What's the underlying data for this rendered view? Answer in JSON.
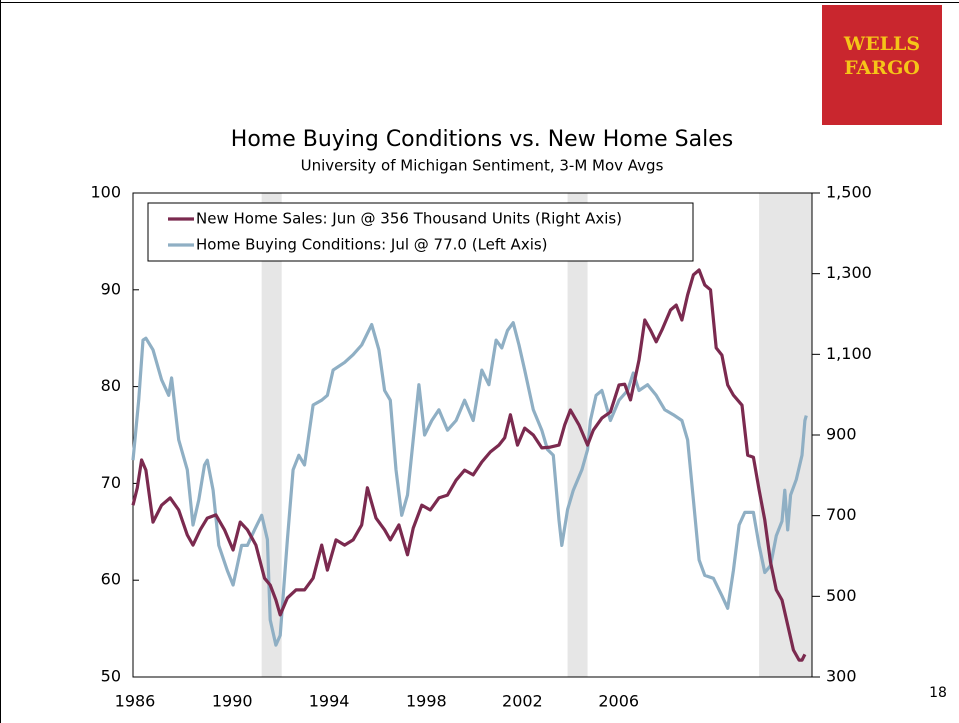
{
  "logo": "WELLS FARGO",
  "page_number": "18",
  "chart_data": {
    "type": "line",
    "title": "Home Buying Conditions vs. New Home Sales",
    "subtitle": "University of Michigan Sentiment, 3-M Mov Avgs",
    "xlim": [
      1986,
      2009.75
    ],
    "xticks": [
      {
        "value": 1986.07,
        "label": "1986"
      },
      {
        "value": 1989.47,
        "label": "1990"
      },
      {
        "value": 1992.86,
        "label": "1994"
      },
      {
        "value": 1996.26,
        "label": "1998"
      },
      {
        "value": 1999.62,
        "label": "2002"
      },
      {
        "value": 2002.99,
        "label": "2006"
      }
    ],
    "ylim": [
      50,
      100
    ],
    "yticks": [
      50,
      60,
      70,
      80,
      90,
      100
    ],
    "y2lim": [
      300,
      1500
    ],
    "y2ticks": [
      300,
      500,
      700,
      900,
      {
        "value": 1100,
        "label": "1,100"
      },
      {
        "value": 1300,
        "label": "1,300"
      },
      {
        "value": 1500,
        "label": "1,500"
      }
    ],
    "recessions": [
      [
        1990.5,
        1991.2
      ],
      [
        2001.2,
        2001.9
      ],
      [
        2007.9,
        2009.75
      ]
    ],
    "recession_color": "#e6e6e6",
    "legend": "upper left",
    "series": [
      {
        "name": "New Home Sales: Jun @ 356 Thousand Units (Right Axis)",
        "color": "#7b2a4f",
        "axis": "y2",
        "x": [
          1986.0,
          1986.15,
          1986.3,
          1986.45,
          1986.7,
          1987.0,
          1987.3,
          1987.6,
          1987.9,
          1988.1,
          1988.35,
          1988.6,
          1988.9,
          1989.2,
          1989.5,
          1989.75,
          1990.0,
          1990.3,
          1990.6,
          1990.8,
          1991.0,
          1991.15,
          1991.4,
          1991.7,
          1992.0,
          1992.3,
          1992.6,
          1992.8,
          1993.1,
          1993.4,
          1993.7,
          1994.0,
          1994.2,
          1994.5,
          1994.8,
          1995.0,
          1995.3,
          1995.6,
          1995.8,
          1996.1,
          1996.4,
          1996.7,
          1997.0,
          1997.3,
          1997.6,
          1997.9,
          1998.2,
          1998.5,
          1998.8,
          1999.0,
          1999.2,
          1999.45,
          1999.7,
          2000.0,
          2000.3,
          2000.6,
          2000.9,
          2001.1,
          2001.3,
          2001.6,
          2001.9,
          2002.1,
          2002.4,
          2002.7,
          2003.0,
          2003.2,
          2003.4,
          2003.7,
          2003.9,
          2004.1,
          2004.3,
          2004.5,
          2004.8,
          2005.0,
          2005.2,
          2005.4,
          2005.6,
          2005.8,
          2006.0,
          2006.2,
          2006.4,
          2006.6,
          2006.8,
          2007.0,
          2007.3,
          2007.5,
          2007.7,
          2007.9,
          2008.1,
          2008.3,
          2008.5,
          2008.7,
          2008.9,
          2009.1,
          2009.3,
          2009.4,
          2009.5
        ],
        "values": [
          726,
          769,
          838,
          813,
          684,
          726,
          744,
          714,
          652,
          627,
          665,
          694,
          702,
          665,
          615,
          684,
          665,
          627,
          545,
          528,
          491,
          454,
          496,
          516,
          516,
          545,
          627,
          565,
          640,
          627,
          640,
          677,
          769,
          694,
          665,
          640,
          677,
          603,
          669,
          726,
          714,
          744,
          751,
          788,
          813,
          801,
          833,
          858,
          875,
          893,
          950,
          875,
          917,
          900,
          868,
          870,
          875,
          925,
          962,
          925,
          875,
          912,
          942,
          957,
          1024,
          1026,
          987,
          1086,
          1185,
          1160,
          1131,
          1160,
          1210,
          1222,
          1185,
          1247,
          1297,
          1309,
          1272,
          1260,
          1116,
          1098,
          1024,
          999,
          974,
          850,
          845,
          764,
          689,
          585,
          516,
          491,
          429,
          367,
          342,
          342,
          356
        ]
      },
      {
        "name": "Home Buying Conditions: Jul @ 77.0 (Left Axis)",
        "color": "#8fafc4",
        "x": [
          1986.0,
          1986.2,
          1986.35,
          1986.45,
          1986.7,
          1987.0,
          1987.25,
          1987.35,
          1987.6,
          1987.9,
          1988.1,
          1988.3,
          1988.5,
          1988.6,
          1988.8,
          1989.0,
          1989.3,
          1989.5,
          1989.8,
          1990.0,
          1990.25,
          1990.5,
          1990.7,
          1990.8,
          1991.0,
          1991.15,
          1991.4,
          1991.6,
          1991.8,
          1992.0,
          1992.3,
          1992.6,
          1992.8,
          1993.0,
          1993.4,
          1993.7,
          1994.0,
          1994.35,
          1994.6,
          1994.8,
          1995.0,
          1995.2,
          1995.4,
          1995.6,
          1995.8,
          1996.0,
          1996.2,
          1996.45,
          1996.7,
          1997.0,
          1997.3,
          1997.6,
          1997.9,
          1998.2,
          1998.45,
          1998.7,
          1998.9,
          1999.1,
          1999.3,
          1999.5,
          1999.7,
          2000.0,
          2000.3,
          2000.5,
          2000.7,
          2000.9,
          2001.0,
          2001.2,
          2001.4,
          2001.7,
          2001.9,
          2002.0,
          2002.2,
          2002.4,
          2002.7,
          2003.0,
          2003.3,
          2003.5,
          2003.7,
          2004.0,
          2004.3,
          2004.6,
          2004.9,
          2005.2,
          2005.4,
          2005.6,
          2005.8,
          2006.0,
          2006.3,
          2006.6,
          2006.8,
          2007.0,
          2007.2,
          2007.4,
          2007.7,
          2007.9,
          2008.1,
          2008.3,
          2008.5,
          2008.7,
          2008.8,
          2008.9,
          2009.0,
          2009.2,
          2009.4,
          2009.5,
          2009.55
        ],
        "values": [
          72.4,
          78.6,
          84.8,
          85.0,
          83.8,
          80.7,
          79.1,
          80.9,
          74.5,
          71.4,
          65.7,
          68.3,
          71.9,
          72.4,
          69.3,
          63.6,
          61.0,
          59.5,
          63.6,
          63.6,
          65.2,
          66.7,
          64.2,
          55.9,
          53.3,
          54.3,
          64.2,
          71.4,
          72.9,
          71.9,
          78.1,
          78.6,
          79.1,
          81.7,
          82.5,
          83.3,
          84.3,
          86.4,
          83.8,
          79.6,
          78.6,
          71.4,
          66.7,
          68.8,
          74.5,
          80.2,
          75.0,
          76.5,
          77.6,
          75.5,
          76.5,
          78.6,
          76.5,
          81.7,
          80.2,
          84.8,
          84.0,
          85.8,
          86.6,
          84.3,
          81.7,
          77.6,
          75.5,
          73.5,
          72.9,
          66.2,
          63.6,
          67.3,
          69.3,
          71.4,
          73.5,
          76.5,
          79.1,
          79.6,
          76.5,
          78.6,
          79.6,
          81.4,
          79.6,
          80.2,
          79.1,
          77.6,
          77.1,
          76.5,
          74.5,
          68.3,
          62.1,
          60.5,
          60.2,
          58.4,
          57.1,
          61.0,
          65.7,
          67.0,
          67.0,
          63.6,
          60.8,
          61.5,
          64.6,
          66.1,
          69.3,
          65.2,
          68.8,
          70.4,
          72.9,
          76.5,
          77.0
        ]
      }
    ]
  }
}
